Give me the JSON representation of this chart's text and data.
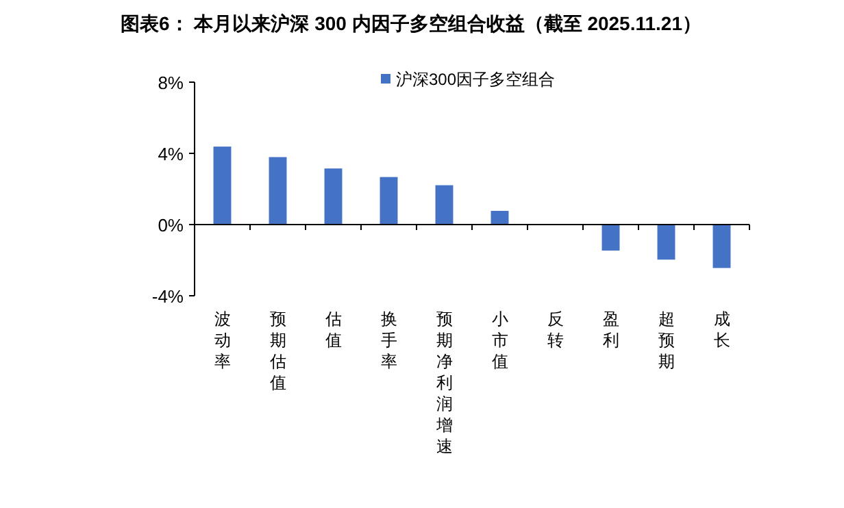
{
  "chart_data": {
    "type": "bar",
    "title": "图表6：  本月以来沪深 300 内因子多空组合收益（截至 2025.11.21）",
    "categories": [
      "波动率",
      "预期估值",
      "估值",
      "换手率",
      "预期净利润增速",
      "小市值",
      "反转",
      "盈利",
      "超预期",
      "成长"
    ],
    "series": [
      {
        "name": "沪深300因子多空组合",
        "color": "#4472c4",
        "values": [
          4.38,
          3.79,
          3.15,
          2.67,
          2.21,
          0.77,
          0,
          -1.46,
          -1.97,
          -2.44
        ]
      }
    ],
    "ylim": [
      -4,
      8
    ],
    "yticks": [
      {
        "value": -4,
        "label": "-4%"
      },
      {
        "value": 0,
        "label": "0%"
      },
      {
        "value": 4,
        "label": "4%"
      },
      {
        "value": 8,
        "label": "8%"
      }
    ],
    "legend": "top"
  }
}
